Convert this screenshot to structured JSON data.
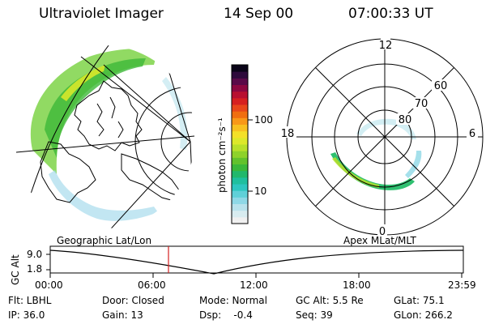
{
  "header": {
    "instrument": "Ultraviolet Imager",
    "date": "14 Sep 00",
    "time": "07:00:33 UT"
  },
  "polar_plot": {
    "lat_labels": [
      "80",
      "70",
      "60"
    ],
    "mlt_labels": [
      "12",
      "18",
      "6",
      "0"
    ]
  },
  "colorbar": {
    "unit_label": "photon cm⁻²s⁻¹",
    "tick_labels": [
      "100",
      "10"
    ],
    "colors": [
      "#f0f0f0",
      "#d8ecf0",
      "#b8e2ec",
      "#8ed8e6",
      "#5fd0d8",
      "#2ec6c0",
      "#1fbf9e",
      "#22b86c",
      "#3ab83a",
      "#62c22c",
      "#8ed22a",
      "#b8e02a",
      "#dde82a",
      "#f4e028",
      "#f8c020",
      "#f89818",
      "#f06e10",
      "#e8461a",
      "#d62020",
      "#b81030",
      "#8c0840",
      "#5a0a48",
      "#2e0a3c",
      "#0a0418"
    ]
  },
  "timeline": {
    "left_caption": "Geographic Lat/Lon",
    "right_caption": "Apex MLat/MLT",
    "axis_label": "GC Alt",
    "y_ticks": [
      "9.0",
      "1.8"
    ],
    "x_ticks": [
      "00:00",
      "06:00",
      "12:00",
      "18:00",
      "23:59"
    ]
  },
  "params": {
    "row1": [
      "Flt: LBHL",
      "Door: Closed",
      "Mode: Normal",
      "GC Alt: 5.5 Re",
      "GLat: 75.1"
    ],
    "row2": [
      "IP: 36.0",
      "Gain: 13",
      "Dsp:    -0.4",
      "Seq: 39",
      "GLon: 266.2"
    ]
  }
}
